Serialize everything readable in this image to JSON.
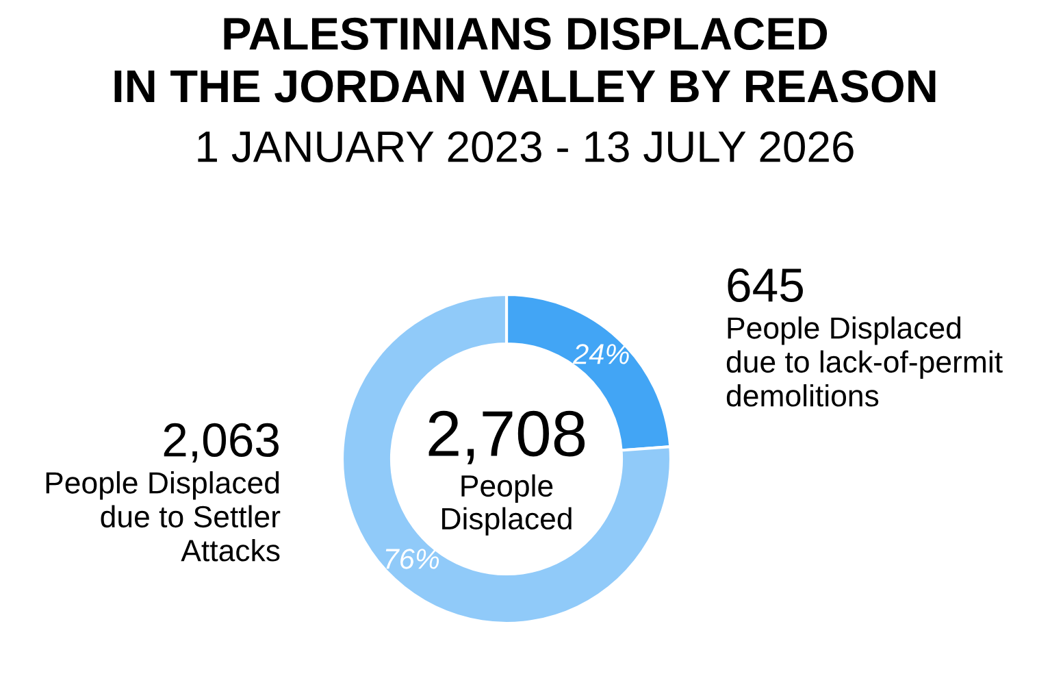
{
  "chart_data": {
    "type": "donut",
    "title": "PALESTINIANS DISPLACED\nIN THE JORDAN VALLEY BY REASON",
    "subtitle": "1 JANUARY 2023 - 13 JULY 2026",
    "categories": [
      "People Displaced\ndue to lack-of-permit\ndemolitions",
      "People Displaced\ndue to Settler\nAttacks"
    ],
    "values": [
      645,
      2063
    ],
    "colors": [
      "#42a5f5",
      "#90caf9"
    ],
    "value_labels": [
      "645",
      "2,063"
    ],
    "annotations": [
      "2,708",
      "People\nDisplaced",
      "24%",
      "76%"
    ],
    "legend": false
  }
}
